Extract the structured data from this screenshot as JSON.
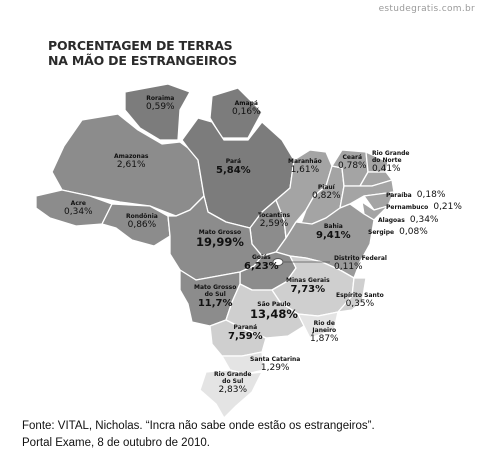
{
  "watermark": "estudegratis.com.br",
  "title_lines": [
    "PORCENTAGEM DE TERRAS",
    "NA MÃO DE ESTRANGEIROS"
  ],
  "states": [
    {
      "name": "Roraima",
      "value": "0,59%"
    },
    {
      "name": "Amapá",
      "value": "0,16%"
    },
    {
      "name": "Amazonas",
      "value": "2,61%"
    },
    {
      "name": "Pará",
      "value": "5,84%"
    },
    {
      "name": "Maranhão",
      "value": "1,61%"
    },
    {
      "name": "Ceará",
      "value": "0,78%"
    },
    {
      "name": "Rio Grande do Norte",
      "value": "0,41%"
    },
    {
      "name": "Paraíba",
      "value": "0,18%"
    },
    {
      "name": "Pernambuco",
      "value": "0,21%"
    },
    {
      "name": "Alagoas",
      "value": "0,34%"
    },
    {
      "name": "Sergipe",
      "value": "0,08%"
    },
    {
      "name": "Piauí",
      "value": "0,82%"
    },
    {
      "name": "Acre",
      "value": "0,34%"
    },
    {
      "name": "Rondônia",
      "value": "0,86%"
    },
    {
      "name": "Tocantins",
      "value": "2,59%"
    },
    {
      "name": "Bahia",
      "value": "9,41%"
    },
    {
      "name": "Mato Grosso",
      "value": "19,99%"
    },
    {
      "name": "Distrito Federal",
      "value": "0,11%"
    },
    {
      "name": "Goiás",
      "value": "6,23%"
    },
    {
      "name": "Minas Gerais",
      "value": "7,73%"
    },
    {
      "name": "Mato Grosso do Sul",
      "value": "11,7%"
    },
    {
      "name": "Espírito Santo",
      "value": "0,35%"
    },
    {
      "name": "São Paulo",
      "value": "13,48%"
    },
    {
      "name": "Rio de Janeiro",
      "value": "1,87%"
    },
    {
      "name": "Paraná",
      "value": "7,59%"
    },
    {
      "name": "Santa Catarina",
      "value": "1,29%"
    },
    {
      "name": "Rio Grande do Sul",
      "value": "2,83%"
    }
  ],
  "source_lines": [
    "Fonte: VITAL, Nicholas. “Incra não sabe onde estão os estrangeiros”.",
    "Portal Exame, 8 de outubro de 2010."
  ]
}
